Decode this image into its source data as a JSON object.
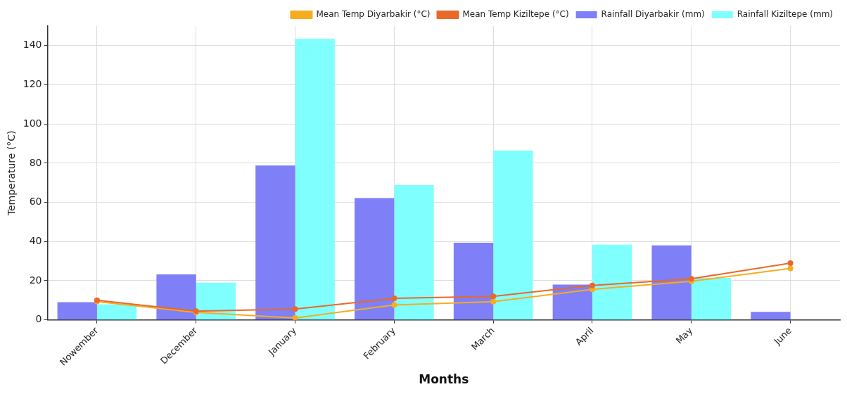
{
  "chart_data": {
    "type": "bar",
    "xlabel": "Months",
    "ylabel": "Temperature (°C)",
    "categories": [
      "Nowember",
      "December",
      "January",
      "February",
      "March",
      "April",
      "May",
      "June"
    ],
    "series": [
      {
        "name": "Mean Temp Diyarbakir (°C)",
        "type": "line",
        "color": "#f5ad1f",
        "values": [
          9.3,
          3.8,
          1,
          7.6,
          9.3,
          15.6,
          19.7,
          26.3
        ]
      },
      {
        "name": "Mean Temp Kiziltepe (°C)",
        "type": "line",
        "color": "#e8692a",
        "values": [
          10,
          4.5,
          5.5,
          11,
          12,
          17.6,
          21,
          29
        ]
      },
      {
        "name": "Rainfall Diyarbakir (mm)",
        "color": "#7f7ff7",
        "values": [
          9,
          23.2,
          78.8,
          62.2,
          39.4,
          18,
          38,
          4.1
        ]
      },
      {
        "name": "Rainfall Kiziltepe (mm)",
        "color": "#80ffff",
        "values": [
          8,
          19,
          143.5,
          68.8,
          86.4,
          38.4,
          21.4,
          null
        ]
      }
    ],
    "ylim": [
      0,
      150
    ],
    "yticks": [
      0,
      20,
      40,
      60,
      80,
      100,
      120,
      140
    ],
    "grid": true,
    "legend": "top right",
    "marker": "circle"
  }
}
